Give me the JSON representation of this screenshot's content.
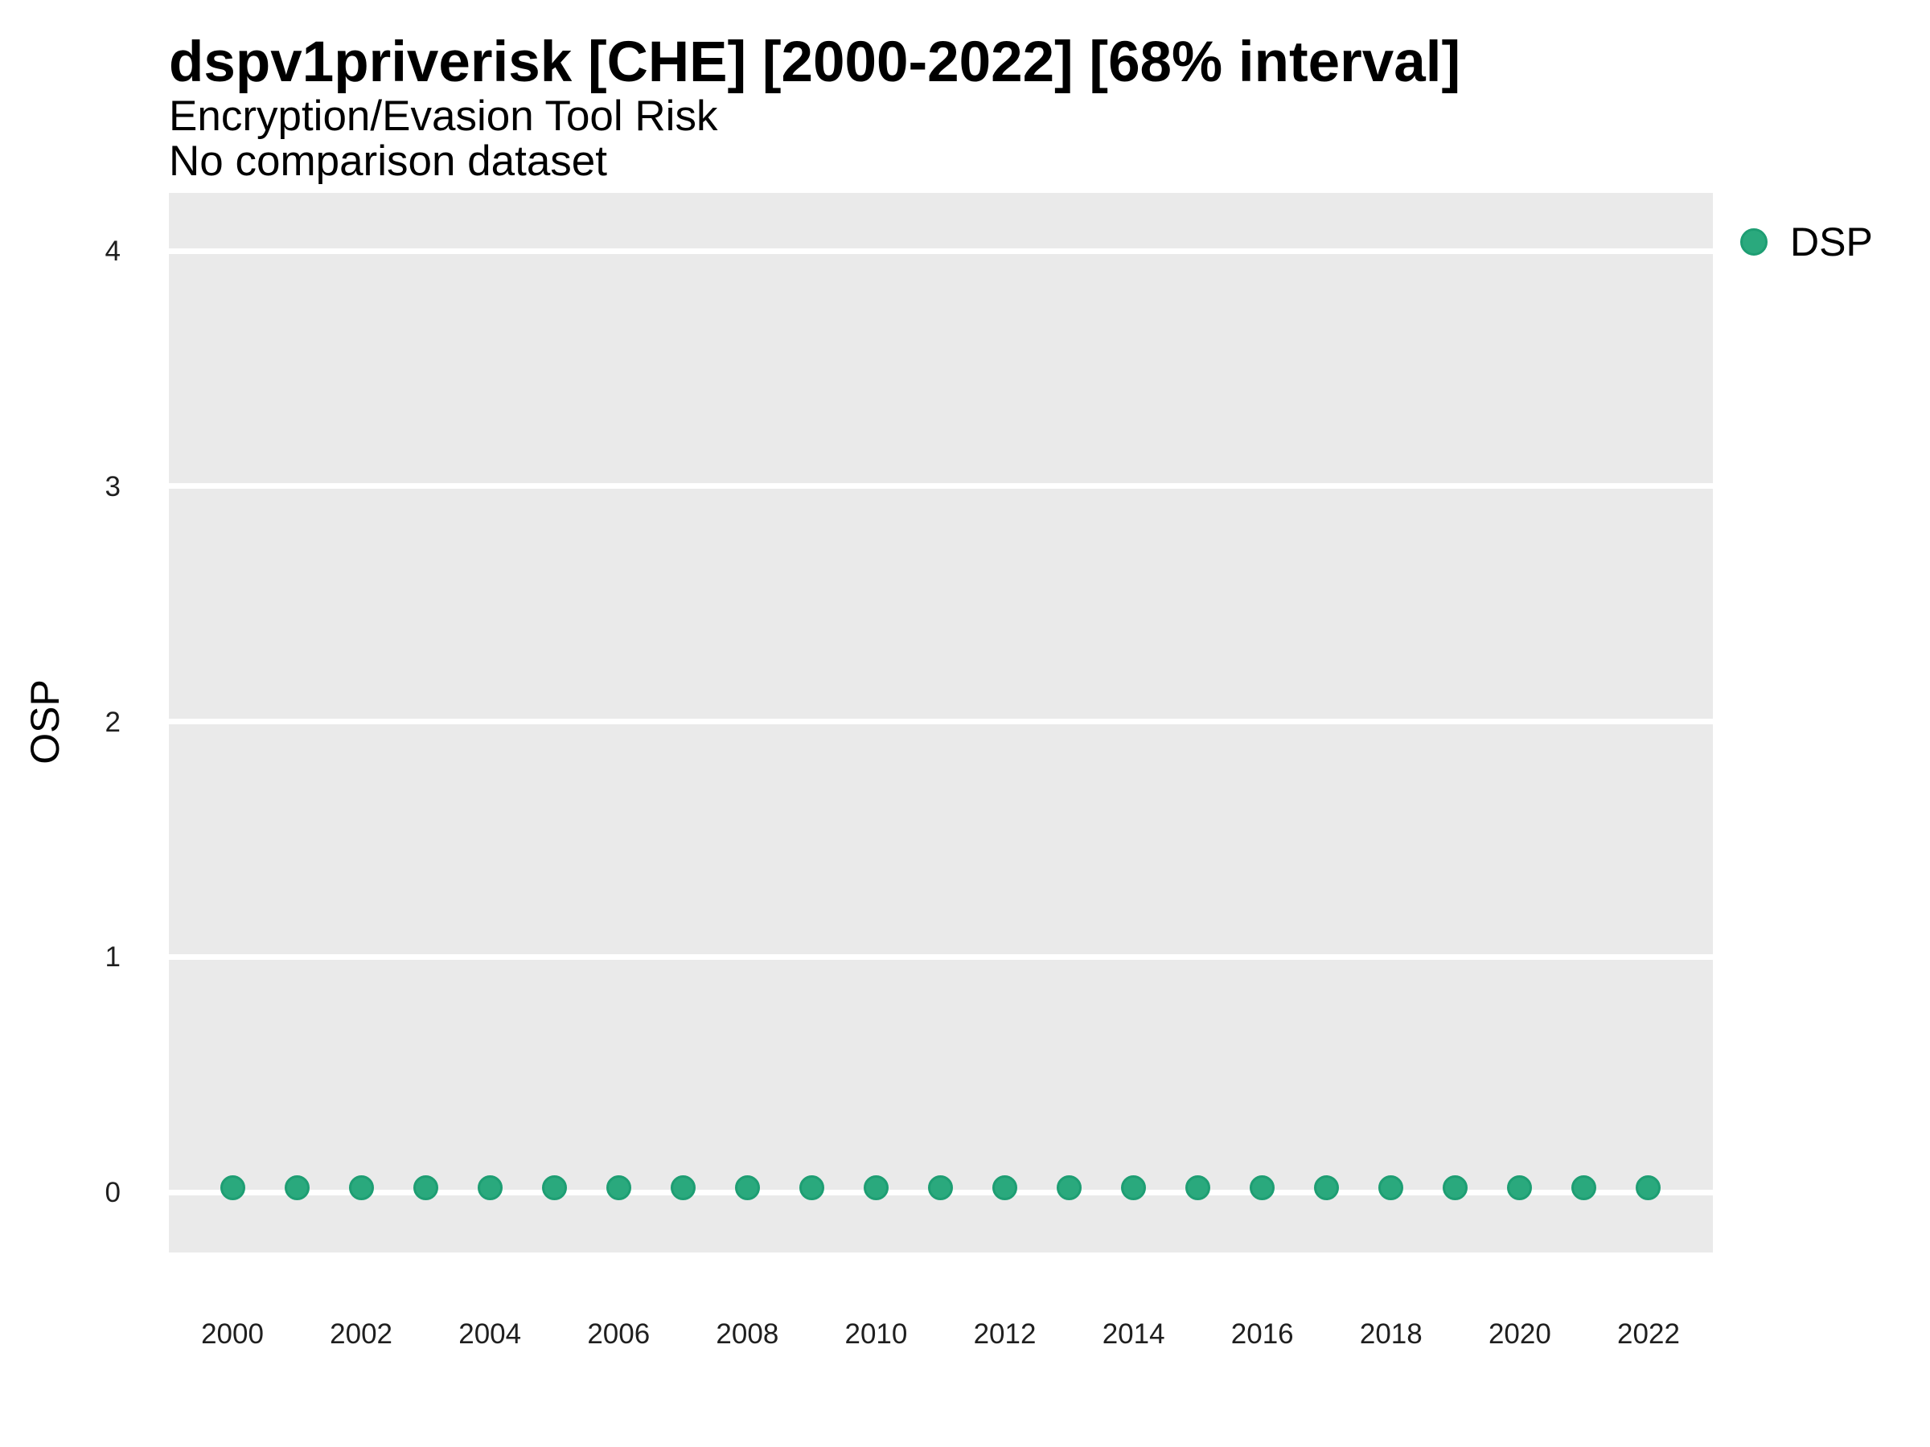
{
  "chart_data": {
    "type": "scatter",
    "title": "dspv1priverisk [CHE] [2000-2022] [68% interval]",
    "subtitle": "Encryption/Evasion Tool Risk",
    "note": "No comparison dataset",
    "xlabel": "",
    "ylabel": "OSP",
    "x": [
      2000,
      2001,
      2002,
      2003,
      2004,
      2005,
      2006,
      2007,
      2008,
      2009,
      2010,
      2011,
      2012,
      2013,
      2014,
      2015,
      2016,
      2017,
      2018,
      2019,
      2020,
      2021,
      2022
    ],
    "series": [
      {
        "name": "DSP",
        "marker": "circle",
        "fill_color": "#2AA97D",
        "stroke_color": "#1E9E73",
        "values": [
          0.02,
          0.02,
          0.02,
          0.02,
          0.02,
          0.02,
          0.02,
          0.02,
          0.02,
          0.02,
          0.02,
          0.02,
          0.02,
          0.02,
          0.02,
          0.02,
          0.02,
          0.02,
          0.02,
          0.02,
          0.02,
          0.02,
          0.02
        ]
      }
    ],
    "xticks": [
      2000,
      2002,
      2004,
      2006,
      2008,
      2010,
      2012,
      2014,
      2016,
      2018,
      2020,
      2022
    ],
    "yticks": [
      0,
      1,
      2,
      3,
      4
    ],
    "xlim": [
      1999,
      2023
    ],
    "ylim": [
      -0.26,
      4.25
    ],
    "grid": {
      "horizontal_major": true,
      "minor": false,
      "gridline_color": "#FFFFFF",
      "panel_background": "#EAEAEA"
    },
    "legend": {
      "position": "top-right",
      "items": [
        {
          "label": "DSP",
          "color": "#2AA97D"
        }
      ]
    }
  }
}
